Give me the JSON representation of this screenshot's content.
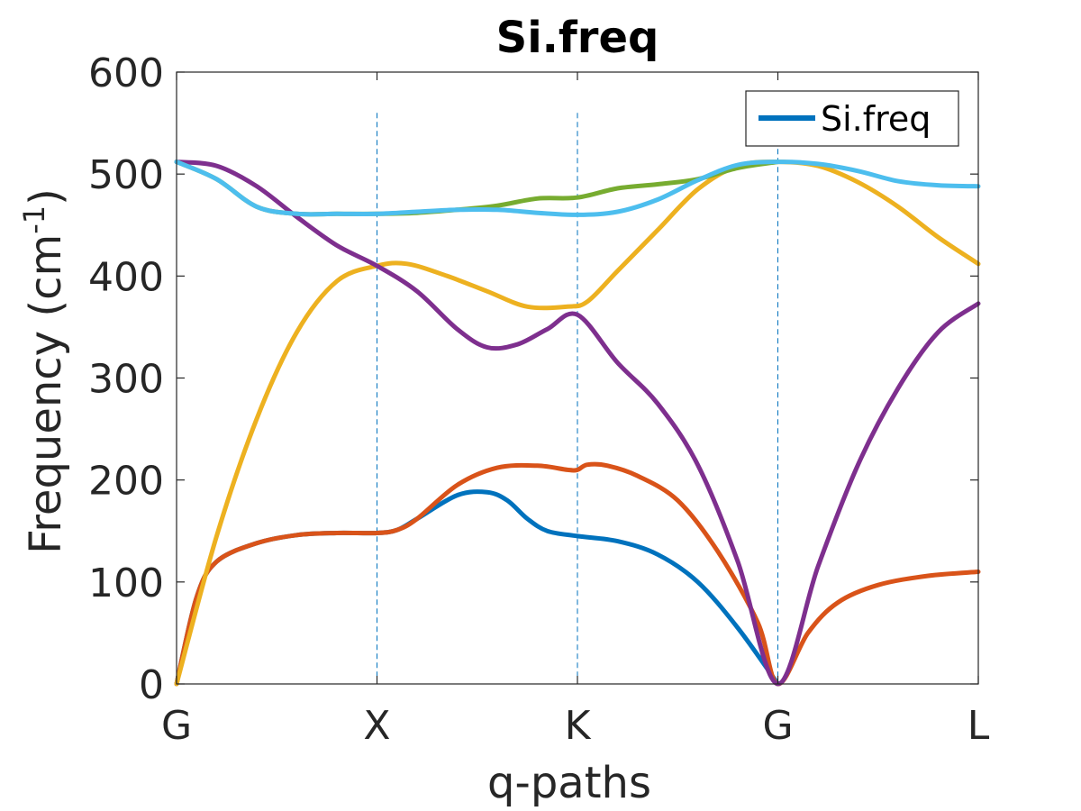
{
  "chart_data": {
    "type": "line",
    "title": "Si.freq",
    "xlabel": "q-paths",
    "ylabel_main": "Frequency (cm",
    "ylabel_sup": "-1",
    "ylabel_close": ")",
    "ylim": [
      0,
      600
    ],
    "yticks": [
      "0",
      "100",
      "200",
      "300",
      "400",
      "500",
      "600"
    ],
    "ytick_values": [
      0,
      100,
      200,
      300,
      400,
      500,
      600
    ],
    "xlim": [
      0,
      4
    ],
    "xticks": [
      "G",
      "X",
      "K",
      "G",
      "L"
    ],
    "xtick_values": [
      0,
      1,
      2,
      3,
      4
    ],
    "vlines": [
      1,
      2,
      3
    ],
    "vline_ymax": 560,
    "legend": {
      "label": "Si.freq",
      "color": "#0072BD",
      "position": "top-right"
    },
    "grid": false,
    "series": [
      {
        "color": "#0072BD",
        "points": [
          [
            0,
            0
          ],
          [
            0.1,
            85
          ],
          [
            0.2,
            120
          ],
          [
            0.4,
            138
          ],
          [
            0.6,
            146
          ],
          [
            0.8,
            148
          ],
          [
            1.0,
            148
          ],
          [
            1.1,
            151
          ],
          [
            1.2,
            162
          ],
          [
            1.4,
            185
          ],
          [
            1.55,
            188
          ],
          [
            1.65,
            180
          ],
          [
            1.75,
            162
          ],
          [
            1.85,
            150
          ],
          [
            2.0,
            145
          ],
          [
            2.2,
            140
          ],
          [
            2.4,
            127
          ],
          [
            2.6,
            100
          ],
          [
            2.8,
            55
          ],
          [
            3.0,
            0
          ]
        ]
      },
      {
        "color": "#D95319",
        "points": [
          [
            0,
            0
          ],
          [
            0.1,
            85
          ],
          [
            0.2,
            120
          ],
          [
            0.4,
            138
          ],
          [
            0.6,
            146
          ],
          [
            0.8,
            148
          ],
          [
            1.0,
            148
          ],
          [
            1.1,
            151
          ],
          [
            1.2,
            162
          ],
          [
            1.4,
            195
          ],
          [
            1.6,
            212
          ],
          [
            1.8,
            214
          ],
          [
            1.95,
            210
          ],
          [
            2.0,
            210
          ],
          [
            2.05,
            215
          ],
          [
            2.15,
            214
          ],
          [
            2.3,
            204
          ],
          [
            2.5,
            180
          ],
          [
            2.7,
            130
          ],
          [
            2.9,
            60
          ],
          [
            3.0,
            0
          ],
          [
            3.15,
            50
          ],
          [
            3.3,
            80
          ],
          [
            3.5,
            97
          ],
          [
            3.75,
            106
          ],
          [
            4.0,
            110
          ]
        ]
      },
      {
        "color": "#EDB120",
        "points": [
          [
            0,
            0
          ],
          [
            0.2,
            145
          ],
          [
            0.4,
            260
          ],
          [
            0.6,
            345
          ],
          [
            0.8,
            395
          ],
          [
            1.0,
            410
          ],
          [
            1.15,
            412
          ],
          [
            1.35,
            400
          ],
          [
            1.55,
            385
          ],
          [
            1.75,
            370
          ],
          [
            1.95,
            370
          ],
          [
            2.05,
            375
          ],
          [
            2.2,
            405
          ],
          [
            2.4,
            445
          ],
          [
            2.6,
            485
          ],
          [
            2.8,
            508
          ],
          [
            3.0,
            512
          ],
          [
            3.2,
            508
          ],
          [
            3.4,
            492
          ],
          [
            3.6,
            468
          ],
          [
            3.8,
            438
          ],
          [
            4.0,
            412
          ]
        ]
      },
      {
        "color": "#7E2F8E",
        "points": [
          [
            0,
            512
          ],
          [
            0.2,
            508
          ],
          [
            0.4,
            488
          ],
          [
            0.6,
            458
          ],
          [
            0.8,
            430
          ],
          [
            1.0,
            410
          ],
          [
            1.2,
            385
          ],
          [
            1.4,
            348
          ],
          [
            1.55,
            330
          ],
          [
            1.7,
            333
          ],
          [
            1.85,
            348
          ],
          [
            2.0,
            362
          ],
          [
            2.2,
            315
          ],
          [
            2.4,
            275
          ],
          [
            2.6,
            215
          ],
          [
            2.8,
            120
          ],
          [
            3.0,
            0
          ],
          [
            3.2,
            115
          ],
          [
            3.4,
            215
          ],
          [
            3.6,
            290
          ],
          [
            3.8,
            345
          ],
          [
            4.0,
            373
          ]
        ]
      },
      {
        "color": "#77AC30",
        "points": [
          [
            0,
            512
          ],
          [
            0.2,
            495
          ],
          [
            0.4,
            468
          ],
          [
            0.6,
            461
          ],
          [
            0.8,
            461
          ],
          [
            1.0,
            461
          ],
          [
            1.2,
            462
          ],
          [
            1.4,
            465
          ],
          [
            1.6,
            469
          ],
          [
            1.8,
            476
          ],
          [
            2.0,
            477
          ],
          [
            2.2,
            486
          ],
          [
            2.4,
            490
          ],
          [
            2.6,
            495
          ],
          [
            2.8,
            506
          ],
          [
            3.0,
            512
          ]
        ]
      },
      {
        "color": "#4DBEEE",
        "points": [
          [
            0,
            512
          ],
          [
            0.2,
            495
          ],
          [
            0.4,
            468
          ],
          [
            0.6,
            461
          ],
          [
            0.8,
            461
          ],
          [
            1.0,
            461
          ],
          [
            1.2,
            463
          ],
          [
            1.4,
            465
          ],
          [
            1.6,
            465
          ],
          [
            1.8,
            462
          ],
          [
            2.0,
            460
          ],
          [
            2.2,
            463
          ],
          [
            2.4,
            475
          ],
          [
            2.6,
            494
          ],
          [
            2.8,
            509
          ],
          [
            3.0,
            512
          ],
          [
            3.2,
            510
          ],
          [
            3.4,
            503
          ],
          [
            3.6,
            493
          ],
          [
            3.8,
            489
          ],
          [
            4.0,
            488
          ]
        ]
      }
    ]
  }
}
